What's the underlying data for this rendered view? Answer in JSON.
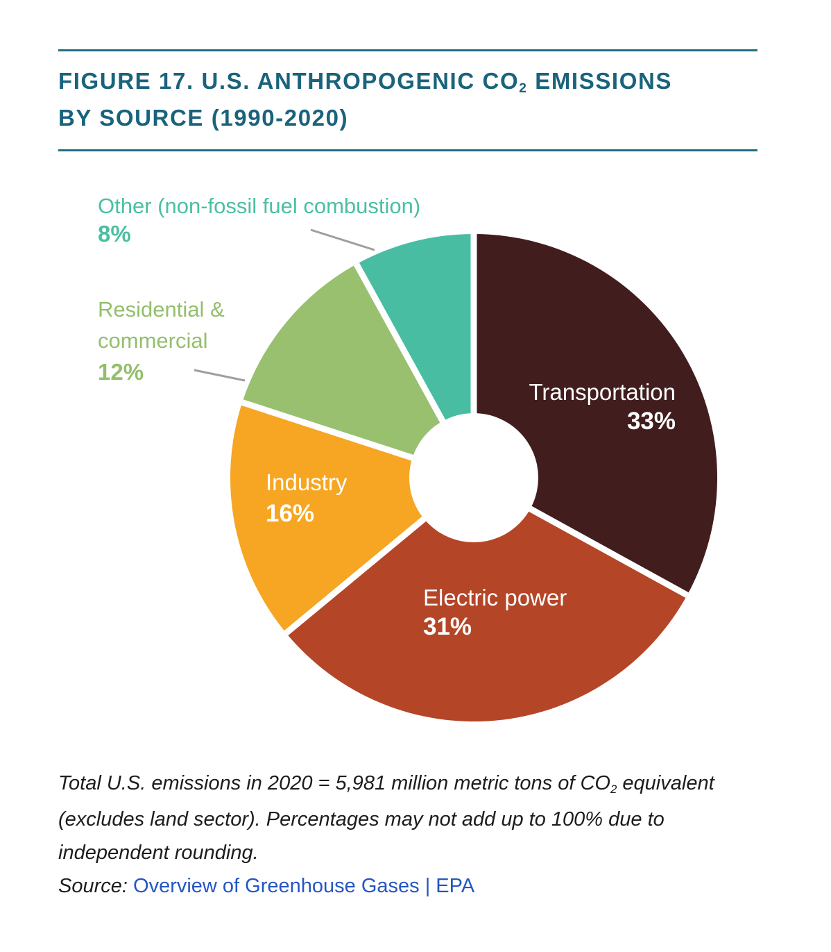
{
  "header": {
    "title_pre": "FIGURE 17. U.S. ANTHROPOGENIC CO",
    "title_sub": "2",
    "title_post": " EMISSIONS",
    "title_line2": "BY SOURCE (1990-2020)",
    "accent_color": "#19637b",
    "rule_color": "#1e6d84"
  },
  "chart_data": {
    "type": "pie",
    "subtype": "donut",
    "title": "U.S. Anthropogenic CO2 Emissions by Source (1990-2020)",
    "categories": [
      "Transportation",
      "Electric power",
      "Industry",
      "Residential & commercial",
      "Other (non-fossil fuel combustion)"
    ],
    "values": [
      33,
      31,
      16,
      12,
      8
    ],
    "value_labels": [
      "33%",
      "31%",
      "16%",
      "12%",
      "8%"
    ],
    "unit": "percent of total CO2 emissions",
    "colors": [
      "#421d1e",
      "#b54527",
      "#f6a623",
      "#99c06f",
      "#48bda2"
    ],
    "callout_text_colors": [
      "#ffffff",
      "#ffffff",
      "#ffffff",
      "#93bf6c",
      "#4bbfa2"
    ],
    "slice_ids": [
      "transportation",
      "electric-power",
      "industry",
      "residential-commercial",
      "other"
    ],
    "start_angle_deg": 0,
    "direction": "clockwise",
    "legend_position": "callout-labels",
    "leader_line_color": "#9e9e9e"
  },
  "footnote": {
    "note_pre": "Total U.S. emissions in 2020 = 5,981 million metric tons of CO",
    "note_sub": "2",
    "note_post": " equivalent (excludes land sector). Percentages may not add up to 100% due to independent rounding.",
    "source_label": "Source:",
    "source_link": "Overview of Greenhouse Gases | EPA",
    "link_color": "#2456c3"
  }
}
